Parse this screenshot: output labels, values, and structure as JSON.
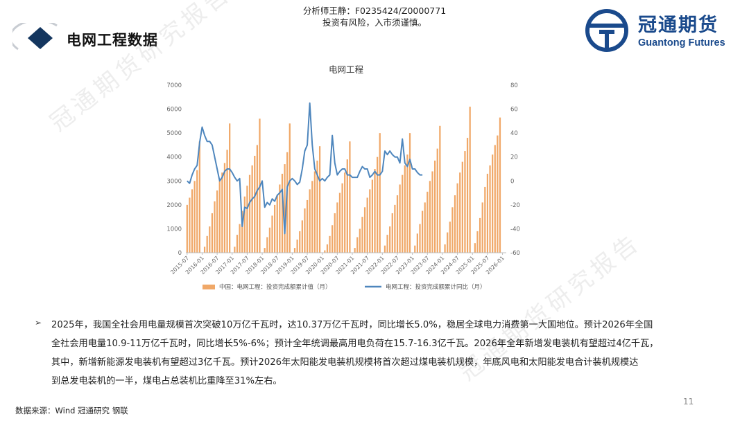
{
  "header": {
    "analyst": "分析师王静：F0235424/Z0000771",
    "disclaimer": "投资有风险，入市须谨慎。",
    "page_title": "电网工程数据"
  },
  "logo": {
    "cn": "冠通期货",
    "en": "Guantong Futures"
  },
  "watermark": "冠通期货研究报告",
  "chart_data": {
    "type": "bar+line",
    "title": "电网工程",
    "y_left": {
      "lim": [
        0,
        7000
      ],
      "ticks": [
        0,
        1000,
        2000,
        3000,
        4000,
        5000,
        6000,
        7000
      ]
    },
    "y_right": {
      "lim": [
        -60,
        80
      ],
      "ticks": [
        -60,
        -40,
        -20,
        0,
        20,
        40,
        60,
        80
      ]
    },
    "x_tick_labels": [
      "2015-07",
      "2016-01",
      "2016-07",
      "2017-01",
      "2017-07",
      "2018-01",
      "2018-07",
      "2019-01",
      "2019-07",
      "2020-01",
      "2020-07",
      "2021-01",
      "2021-07",
      "2022-01",
      "2022-07",
      "2023-01",
      "2023-07",
      "2024-01",
      "2024-07",
      "2025-01",
      "2025-07",
      "2026-01"
    ],
    "series": [
      {
        "name": "中国：电网工程：投资完成额累计值（月）",
        "kind": "bar",
        "axis": "left",
        "color": "#f0a868",
        "years": [
          {
            "year": 2015,
            "start_month": 7,
            "values": [
              2000,
              2300,
              2650,
              3000,
              3450,
              4650
            ]
          },
          {
            "year": 2016,
            "values": [
              0,
              250,
              700,
              1100,
              1650,
              2150,
              2600,
              3000,
              3350,
              3750,
              4300,
              5400
            ]
          },
          {
            "year": 2017,
            "values": [
              0,
              250,
              750,
              1200,
              1750,
              2350,
              2800,
              3250,
              3650,
              4050,
              4500,
              5600
            ]
          },
          {
            "year": 2018,
            "values": [
              0,
              200,
              650,
              1050,
              1550,
              2000,
              2400,
              2850,
              3300,
              3700,
              4200,
              5400
            ]
          },
          {
            "year": 2019,
            "values": [
              0,
              200,
              550,
              900,
              1350,
              1850,
              2200,
              2650,
              3000,
              3400,
              3850,
              4450
            ]
          },
          {
            "year": 2020,
            "values": [
              0,
              100,
              350,
              700,
              1150,
              1650,
              2100,
              2500,
              2900,
              3350,
              3900,
              4650
            ]
          },
          {
            "year": 2021,
            "values": [
              0,
              200,
              650,
              1000,
              1500,
              1900,
              2300,
              2650,
              3050,
              3500,
              4000,
              5000
            ]
          },
          {
            "year": 2022,
            "values": [
              0,
              300,
              750,
              1100,
              1650,
              2000,
              2400,
              2850,
              3250,
              3650,
              4100,
              5000
            ]
          },
          {
            "year": 2023,
            "values": [
              0,
              300,
              800,
              1200,
              1750,
              2100,
              2550,
              3000,
              3400,
              3850,
              4350,
              5300
            ]
          },
          {
            "year": 2024,
            "values": [
              0,
              350,
              850,
              1300,
              1900,
              2400,
              2900,
              3350,
              3800,
              4250,
              4800,
              6100
            ]
          },
          {
            "year": 2025,
            "values": [
              0,
              400,
              900,
              1450,
              2100,
              2750,
              3300,
              3650,
              4100,
              4500,
              4900,
              5650
            ]
          }
        ]
      },
      {
        "name": "电网工程：投资完成额累计同比（月）",
        "kind": "line",
        "axis": "right",
        "color": "#4e86bd",
        "start": {
          "year": 2015,
          "month": 7
        },
        "values": [
          0,
          -2,
          5,
          10,
          13,
          32,
          45,
          38,
          33,
          33,
          30,
          20,
          10,
          0,
          3,
          8,
          10,
          10,
          7,
          3,
          0,
          2,
          -38,
          -22,
          -23,
          -18,
          -15,
          -13,
          -8,
          -5,
          0,
          -22,
          -18,
          -20,
          -15,
          -17,
          -12,
          -10,
          -7,
          -44,
          -5,
          0,
          2,
          0,
          -3,
          -1,
          10,
          25,
          30,
          65,
          30,
          10,
          5,
          0,
          2,
          0,
          3,
          5,
          38,
          15,
          5,
          8,
          10,
          10,
          5,
          5,
          3,
          3,
          3,
          8,
          12,
          10,
          10,
          3,
          5,
          8,
          5,
          5,
          8,
          25,
          22,
          25,
          22,
          20,
          20,
          15,
          35,
          15,
          12,
          18,
          10,
          10,
          7,
          5,
          5
        ]
      }
    ]
  },
  "bullet": {
    "mark": "➢",
    "lines": [
      "2025年，我国全社会用电量规模首次突破10万亿千瓦时，达10.37万亿千瓦时，同比增长5.0%，稳居全球电力消费第一大国地位。预计2026年全国",
      "全社会用电量10.9-11万亿千瓦时，同比增长5%-6%；预计全年统调最高用电负荷在15.7-16.3亿千瓦。2026年全年新增发电装机有望超过4亿千瓦，",
      "其中，新增新能源发电装机有望超过3亿千瓦。预计2026年太阳能发电装机规模将首次超过煤电装机规模，年底风电和太阳能发电合计装机规模达",
      "到总发电装机的一半，煤电占总装机比重降至31%左右。"
    ]
  },
  "footer": {
    "source": "数据来源：Wind 冠通研究 钢联",
    "page_number": "11"
  }
}
